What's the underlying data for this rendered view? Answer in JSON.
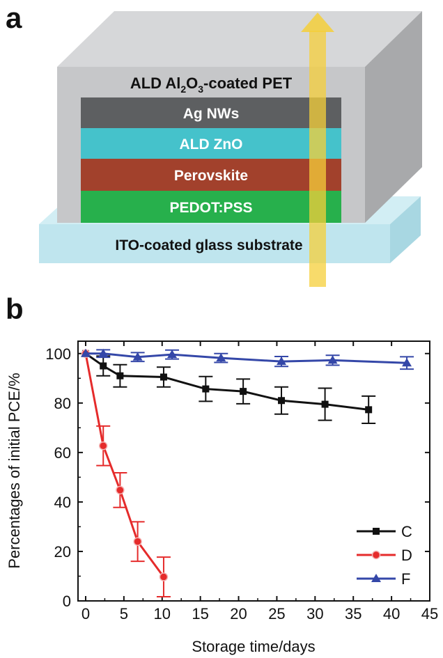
{
  "panels": {
    "a": "a",
    "b": "b"
  },
  "diagram": {
    "top_layer": {
      "prefix": "ALD Al",
      "sub1": "2",
      "mid": "O",
      "sub2": "3",
      "suffix": "-coated PET"
    },
    "layers": [
      {
        "label": "Ag NWs",
        "color": "#5d5f61"
      },
      {
        "label": "ALD ZnO",
        "color": "#45c2cb"
      },
      {
        "label": "Perovskite",
        "color": "#a2412c"
      },
      {
        "label": "PEDOT:PSS",
        "color": "#27b04c"
      }
    ],
    "substrate": "ITO-coated glass substrate",
    "colors": {
      "pet": "#c6c7c9",
      "glass": "#bfe5ee",
      "arrow": "#f5cf3a"
    }
  },
  "chart_data": {
    "type": "line",
    "xlabel": "Storage time/days",
    "ylabel": "Percentages of initial PCE/%",
    "xlim": [
      -1,
      45
    ],
    "ylim": [
      0,
      105
    ],
    "xticks": [
      0,
      5,
      10,
      15,
      20,
      25,
      30,
      35,
      40,
      45
    ],
    "yticks": [
      0,
      20,
      40,
      60,
      80,
      100
    ],
    "legend_position": "bottom-right",
    "series": [
      {
        "name": "C",
        "color": "#111111",
        "marker": "square",
        "x": [
          0,
          2.3,
          4.5,
          10.2,
          15.7,
          20.6,
          25.6,
          31.3,
          37
        ],
        "y": [
          100,
          95,
          91,
          90.5,
          85.7,
          84.7,
          81,
          79.5,
          77.3
        ],
        "err": [
          0,
          4,
          4.5,
          4,
          5,
          5,
          5.5,
          6.5,
          5.5
        ]
      },
      {
        "name": "D",
        "color": "#e52b2b",
        "marker": "circle",
        "x": [
          0,
          2.3,
          4.5,
          6.8,
          10.2
        ],
        "y": [
          100,
          62.7,
          44.8,
          24,
          9.7
        ],
        "err": [
          0,
          8,
          7,
          8,
          8
        ]
      },
      {
        "name": "F",
        "color": "#3447a8",
        "marker": "triangle",
        "x": [
          0,
          2.3,
          6.8,
          11.3,
          17.7,
          25.6,
          32.3,
          42
        ],
        "y": [
          100,
          100,
          98.6,
          99.6,
          98.2,
          96.8,
          97.3,
          96.2
        ],
        "err": [
          0,
          1.5,
          1.8,
          1.8,
          1.8,
          2,
          2,
          2.5
        ]
      }
    ]
  }
}
